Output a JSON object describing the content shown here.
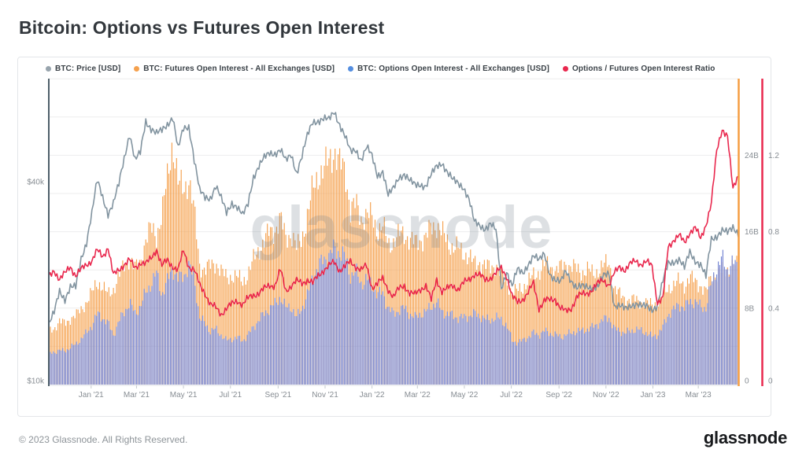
{
  "title": "Bitcoin: Options vs Futures Open Interest",
  "watermark": "glassnode",
  "footer": {
    "copyright": "© 2023 Glassnode. All Rights Reserved.",
    "brand": "glassnode"
  },
  "legend": [
    {
      "label": "BTC: Price [USD]",
      "color": "#98a4ad"
    },
    {
      "label": "BTC: Futures Open Interest - All Exchanges [USD]",
      "color": "#f5a14e"
    },
    {
      "label": "BTC: Options Open Interest - All Exchanges [USD]",
      "color": "#548ee0"
    },
    {
      "label": "Options / Futures Open Interest Ratio",
      "color": "#e9284e"
    }
  ],
  "chart_data": {
    "type": "mixed",
    "x_start": "2020-11-07",
    "x_interval_days": 7,
    "x_axis": {
      "ticks": [
        {
          "label": "Jan '21",
          "date": "2021-01-01"
        },
        {
          "label": "Mar '21",
          "date": "2021-03-01"
        },
        {
          "label": "May '21",
          "date": "2021-05-01"
        },
        {
          "label": "Jul '21",
          "date": "2021-07-01"
        },
        {
          "label": "Sep '21",
          "date": "2021-09-01"
        },
        {
          "label": "Nov '21",
          "date": "2021-11-01"
        },
        {
          "label": "Jan '22",
          "date": "2022-01-01"
        },
        {
          "label": "Mar '22",
          "date": "2022-03-01"
        },
        {
          "label": "May '22",
          "date": "2022-05-01"
        },
        {
          "label": "Jul '22",
          "date": "2022-07-01"
        },
        {
          "label": "Sep '22",
          "date": "2022-09-01"
        },
        {
          "label": "Nov '22",
          "date": "2022-11-01"
        },
        {
          "label": "Jan '23",
          "date": "2023-01-01"
        },
        {
          "label": "Mar '23",
          "date": "2023-03-01"
        }
      ]
    },
    "y_axes": {
      "price_usd": {
        "side": "left",
        "scale": "log",
        "unit": "USD (thousands)",
        "ticks": [
          {
            "label": "$40k",
            "value": 40
          },
          {
            "label": "$10k",
            "value": 10
          }
        ]
      },
      "open_interest": {
        "side": "right",
        "scale": "linear",
        "unit": "USD billions",
        "ticks": [
          {
            "label": "24B",
            "value": 24
          },
          {
            "label": "16B",
            "value": 16
          },
          {
            "label": "8B",
            "value": 8
          },
          {
            "label": "0",
            "value": 0
          }
        ]
      },
      "ratio": {
        "side": "far-right",
        "scale": "linear",
        "unit": "ratio",
        "ticks": [
          {
            "label": "1.2",
            "value": 1.2
          },
          {
            "label": "0.8",
            "value": 0.8
          },
          {
            "label": "0.4",
            "value": 0.4
          },
          {
            "label": "0",
            "value": 0
          }
        ]
      }
    },
    "series": [
      {
        "name": "BTC: Price [USD]",
        "type": "line",
        "axis": "price_usd",
        "color": "#8294a0",
        "values": [
          14.8,
          16.0,
          18.7,
          17.7,
          19.2,
          19.1,
          23.4,
          26.3,
          32.1,
          40.2,
          36.0,
          32.1,
          34.3,
          39.2,
          47.2,
          55.9,
          46.3,
          48.9,
          61.2,
          58.1,
          55.8,
          57.1,
          59.8,
          63.0,
          50.1,
          57.8,
          58.9,
          46.7,
          37.5,
          35.7,
          35.8,
          39.0,
          35.5,
          32.2,
          34.7,
          33.5,
          31.5,
          34.3,
          41.6,
          44.6,
          47.1,
          48.9,
          48.9,
          50.0,
          46.1,
          48.3,
          42.7,
          47.7,
          54.9,
          60.9,
          61.3,
          61.9,
          61.5,
          65.5,
          59.7,
          54.7,
          49.2,
          50.1,
          46.7,
          50.8,
          47.7,
          41.9,
          43.1,
          36.2,
          38.2,
          41.5,
          42.2,
          40.1,
          39.1,
          39.4,
          38.8,
          41.8,
          44.5,
          45.8,
          42.8,
          40.4,
          39.5,
          38.6,
          35.5,
          30.1,
          29.4,
          29.0,
          29.9,
          28.4,
          19.0,
          21.5,
          19.3,
          21.6,
          21.2,
          22.6,
          23.8,
          23.0,
          24.4,
          21.1,
          20.0,
          19.8,
          21.7,
          20.1,
          18.9,
          19.3,
          19.4,
          19.1,
          19.2,
          20.8,
          21.3,
          16.8,
          16.7,
          16.5,
          17.0,
          17.1,
          16.7,
          16.8,
          16.5,
          16.9,
          19.9,
          22.7,
          23.0,
          23.3,
          21.8,
          24.6,
          23.2,
          22.4,
          20.5,
          26.9,
          27.5,
          28.5,
          27.9,
          29.2,
          28.1
        ]
      },
      {
        "name": "BTC: Futures Open Interest - All Exchanges [USD]",
        "type": "bar",
        "axis": "open_interest",
        "color": "#f5a14e",
        "values": [
          5.6,
          5.9,
          6.6,
          6.4,
          6.9,
          7.2,
          7.9,
          8.6,
          9.6,
          10.8,
          10.2,
          9.4,
          10.0,
          11.3,
          12.4,
          13.4,
          12.1,
          12.8,
          15.2,
          16.3,
          15.6,
          17.8,
          21.5,
          25.5,
          21.0,
          20.5,
          21.5,
          18.0,
          12.5,
          12.0,
          12.4,
          12.8,
          11.8,
          11.2,
          11.4,
          11.2,
          10.8,
          11.6,
          13.0,
          14.2,
          15.0,
          16.0,
          16.2,
          17.3,
          15.4,
          15.8,
          14.2,
          15.4,
          17.6,
          20.4,
          22.0,
          22.4,
          23.4,
          24.6,
          23.0,
          22.4,
          18.4,
          18.8,
          17.4,
          17.8,
          17.4,
          16.2,
          16.6,
          14.6,
          15.0,
          15.6,
          15.8,
          15.2,
          14.8,
          15.2,
          15.4,
          16.4,
          16.8,
          15.8,
          15.0,
          14.4,
          14.2,
          13.8,
          13.4,
          12.6,
          12.8,
          12.4,
          12.2,
          12.6,
          11.4,
          10.8,
          9.6,
          9.8,
          10.2,
          10.8,
          11.4,
          11.8,
          12.6,
          12.4,
          12.0,
          12.2,
          12.6,
          12.4,
          12.0,
          11.8,
          12.0,
          11.6,
          12.0,
          12.4,
          12.8,
          10.0,
          9.4,
          9.0,
          8.8,
          8.9,
          8.6,
          8.5,
          8.4,
          8.6,
          9.2,
          10.2,
          10.4,
          10.8,
          10.4,
          11.2,
          10.8,
          10.4,
          9.6,
          11.4,
          11.6,
          11.8,
          12.0,
          12.6,
          12.2
        ]
      },
      {
        "name": "BTC: Options Open Interest - All Exchanges [USD]",
        "type": "bar",
        "axis": "open_interest",
        "color": "#7383d2",
        "values": [
          3.2,
          3.4,
          3.6,
          3.5,
          3.9,
          4.2,
          4.8,
          5.4,
          6.2,
          7.4,
          7.0,
          6.4,
          5.2,
          6.6,
          7.6,
          8.6,
          7.4,
          8.2,
          9.6,
          10.6,
          11.6,
          9.4,
          10.8,
          12.2,
          11.0,
          11.4,
          12.4,
          11.0,
          7.0,
          6.4,
          5.6,
          5.8,
          5.2,
          4.6,
          4.8,
          4.9,
          4.6,
          5.2,
          6.0,
          6.8,
          7.4,
          8.0,
          8.4,
          9.2,
          8.0,
          8.2,
          7.0,
          8.0,
          9.4,
          11.2,
          12.4,
          13.0,
          13.6,
          14.2,
          13.8,
          13.4,
          11.4,
          11.8,
          10.6,
          11.0,
          10.4,
          9.4,
          9.6,
          8.0,
          7.4,
          7.8,
          8.0,
          7.4,
          7.0,
          7.4,
          7.6,
          8.2,
          8.6,
          7.6,
          7.4,
          7.2,
          7.0,
          7.0,
          7.2,
          7.4,
          7.2,
          6.8,
          6.8,
          7.0,
          6.8,
          6.2,
          4.6,
          4.4,
          4.6,
          5.0,
          5.4,
          5.2,
          5.6,
          5.4,
          5.2,
          5.0,
          5.2,
          5.4,
          5.6,
          5.6,
          5.8,
          6.0,
          6.4,
          6.8,
          7.0,
          5.8,
          5.6,
          5.4,
          5.6,
          5.8,
          5.6,
          5.4,
          5.0,
          5.2,
          6.0,
          7.4,
          7.8,
          8.4,
          8.0,
          8.8,
          8.6,
          8.2,
          8.0,
          10.6,
          12.2,
          13.2,
          12.0,
          12.8,
          12.2
        ]
      },
      {
        "name": "Options / Futures Open Interest Ratio",
        "type": "line",
        "axis": "ratio",
        "color": "#e9284e",
        "values": [
          0.56,
          0.6,
          0.55,
          0.58,
          0.62,
          0.57,
          0.6,
          0.63,
          0.65,
          0.7,
          0.67,
          0.72,
          0.57,
          0.6,
          0.63,
          0.65,
          0.61,
          0.64,
          0.63,
          0.66,
          0.71,
          0.62,
          0.65,
          0.62,
          0.6,
          0.7,
          0.62,
          0.6,
          0.52,
          0.48,
          0.42,
          0.4,
          0.37,
          0.4,
          0.42,
          0.44,
          0.42,
          0.45,
          0.47,
          0.48,
          0.5,
          0.52,
          0.52,
          0.6,
          0.49,
          0.52,
          0.54,
          0.53,
          0.55,
          0.53,
          0.57,
          0.6,
          0.62,
          0.64,
          0.6,
          0.62,
          0.64,
          0.62,
          0.6,
          0.62,
          0.51,
          0.53,
          0.55,
          0.5,
          0.46,
          0.5,
          0.52,
          0.48,
          0.47,
          0.5,
          0.52,
          0.44,
          0.55,
          0.49,
          0.5,
          0.52,
          0.5,
          0.53,
          0.55,
          0.58,
          0.57,
          0.55,
          0.56,
          0.58,
          0.61,
          0.57,
          0.46,
          0.43,
          0.45,
          0.48,
          0.53,
          0.4,
          0.44,
          0.44,
          0.45,
          0.4,
          0.38,
          0.4,
          0.46,
          0.47,
          0.48,
          0.5,
          0.53,
          0.55,
          0.52,
          0.58,
          0.62,
          0.6,
          0.63,
          0.65,
          0.63,
          0.64,
          0.62,
          0.43,
          0.45,
          0.72,
          0.76,
          0.78,
          0.74,
          0.8,
          0.82,
          0.76,
          0.84,
          0.95,
          1.22,
          1.34,
          1.3,
          1.02,
          1.1
        ]
      }
    ]
  }
}
